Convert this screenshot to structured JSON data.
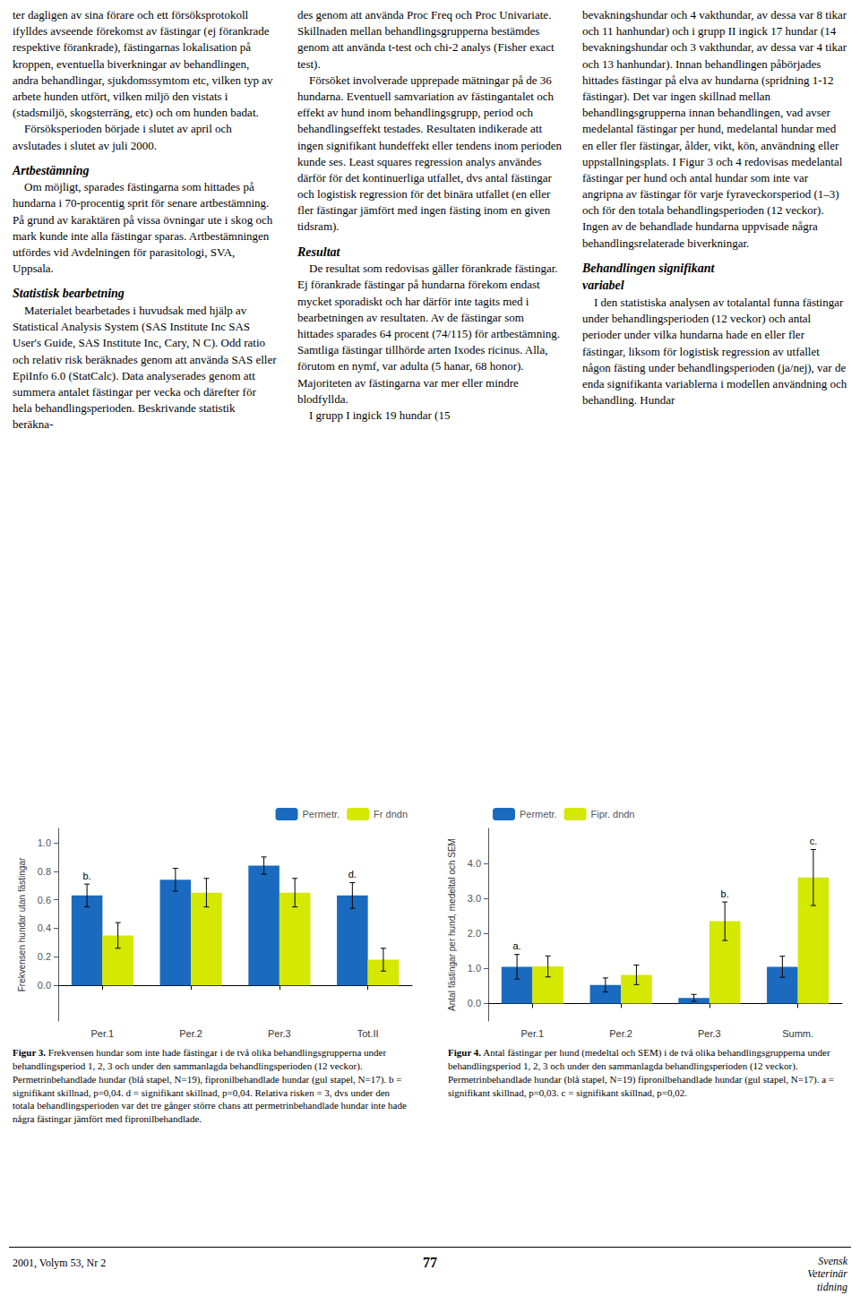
{
  "text_columns": [
    "ter dagligen av sina förare och ett försöksprotokoll ifylldes avseende förekomst av fästingar (ej förankrade respektive förankrade), fästingarnas lokalisation på kroppen, eventuella biverkningar av behandlingen, andra behandlingar, sjukdomssymtom etc, vilken typ av arbete hunden utfört, vilken miljö den vistats i (stadsmiljö, skogsterräng, etc) och om hunden badat.\n    Försöksperioden började i slutet av april och avslutades i slutet av juli 2000.\n\nArtbestämning\n    Om möjligt, sparades fästingarna som hittades på hundarna i 70-procentig sprit för senare artbestämning. På grund av karaktären på vissa övningar ute i skog och mark kunde inte alla fästingar sparas. Artbestämningen utfördes vid Avdelningen för parasitologi, SVA, Uppsala.\n\nStatistisk bearbetning\n    Materialet bearbetades i huvudsak med hjälp av Statistical Analysis System (SAS Institute Inc SAS User's Guide, SAS Institute Inc, Cary, N C). Odd ratio och relativ risk beräknades genom att använda SAS eller EpiInfo 6.0 (StatCalc). Data analyserades genom att summera antalet fästingar per vecka och därefter för hela behandlingsperioden. Beskrivande statistik beräkna-",
    "des genom att använda Proc Freq och Proc Univariate. Skillnaden mellan behandlingsgrupperna bestämdes genom att använda t-test och chi-2 analys (Fisher exact test).\n    Försöket involverade upprepade mätningar på de 36 hundarna. Eventuell samvariation av fästingantalet och effekt av hund inom behandlingsgrupp, period och behandlingseffekt testades. Resultaten indikerade att ingen signifikant hundeffekt eller tendens inom perioden kunde ses. Least squares regression analys användes därför för det kontinuerliga utfallet, dvs antal fästingar och logistisk regression för det binära utfallet (en eller fler fästingar jämfört med ingen fästing inom en given tidsram).\n\nResultat\n    De resultat som redovisas gäller förankrade fästingar. Ej förankrade fästingar på hundarna förekom endast mycket sporadiskt och har därför inte tagits med i bearbetningen av resultaten. Av de fästingar som hittades sparades 64 procent (74/115) för artbestämning. Samtliga fästingar tillhörde arten Ixodes ricinus. Alla, förutom en nymf, var adulta (5 hanar, 68 honor). Majoriteten av fästingarna var mer eller mindre blodfyllda.\n    I grupp I ingick 19 hundar (15",
    "bevakningshundar och 4 vakthundar, av dessa var 8 tikar och 11 hanhundar) och i grupp II ingick 17 hundar (14 bevakningshundar och 3 vakthundar, av dessa var 4 tikar och 13 hanhundar). Innan behandlingen påbörjades hittades fästingar på elva av hundarna (spridning 1-12 fästingar). Det var ingen skillnad mellan behandlingsgrupperna innan behandlingen, vad avser medelantal fästingar per hund, medelantal hundar med en eller fler fästingar, ålder, vikt, kön, användning eller uppstallningsplats. I Figur 3 och 4 redovisas medelantal fästingar per hund och antal hundar som inte var angripna av fästingar för varje fyraveckorsperiod (1–3) och för den totala behandlingsperioden (12 veckor). Ingen av de behandlade hundarna uppvisade några behandlingsrelaterade biverkningar.\n\nBehandlingen signifikant\nvariabel\n    I den statistiska analysen av totalantal funna fästingar under behandlingsperioden (12 veckor) och antal perioder under vilka hundarna hade en eller fler fästingar, liksom för logistisk regression av utfallet någon fästing under behandlingsperioden (ja/nej), var de enda signifikanta variablerna i modellen användning och behandling. Hundar"
  ],
  "chart_data": [
    {
      "type": "bar",
      "title": "Figur 3.",
      "caption": "Frekvensen hundar som inte hade fästingar i de två olika behandlingsgrupperna under behandlingsperiod 1, 2, 3 och under den sammanlagda behandlingsperioden (12 veckor). Permetrinbehandlade hundar (blå stapel, N=19), fipronilbehandlade hundar (gul stapel, N=17). b = signifikant skillnad, p=0,04. d = signifikant skillnad, p=0,04. Relativa risken = 3, dvs under den totala behandlingsperioden var det tre gånger större chans att permetrinbehandlade hundar inte hade några fästingar jämfört med fipronilbehandlade.",
      "ylabel": "Frekvensen hundar utan fästingar",
      "categories": [
        "Per.1",
        "Per.2",
        "Per.3",
        "Tot.II"
      ],
      "series": [
        {
          "name": "Permetr.",
          "color": "#1a6abf",
          "values": [
            0.63,
            0.74,
            0.84,
            0.63
          ],
          "errors": [
            0.08,
            0.08,
            0.06,
            0.09
          ],
          "annotations": [
            "b.",
            null,
            null,
            "d."
          ]
        },
        {
          "name": "Fr dndn",
          "color": "#d4e800",
          "values": [
            0.35,
            0.65,
            0.65,
            0.18
          ],
          "errors": [
            0.09,
            0.1,
            0.1,
            0.08
          ],
          "annotations": [
            null,
            null,
            null,
            null
          ]
        }
      ],
      "ylim": [
        -0.25,
        1.1
      ],
      "yticks": [
        {
          "value": 0,
          "label": "0.0"
        },
        0.2,
        0.4,
        0.6,
        0.8,
        {
          "value": 1,
          "label": "1.0"
        }
      ],
      "legend": "upper right",
      "grid": false
    },
    {
      "type": "bar",
      "title": "Figur 4.",
      "caption": "Antal fästingar per hund (medeltal och SEM) i de två olika behandlingsgrupperna under behandlingsperiod 1, 2, 3 och under den sammanlagda behandlingsperioden (12 veckor). Permetrinbehandlade hundar (blå stapel, N=19) fipronilbehandlade hundar (gul stapel, N=17). a = signifikant skillnad, p=0,03. c = signifikant skillnad, p=0,02.",
      "ylabel": "Antal fästingar per hund, medeltal och SEM",
      "categories": [
        "Per.1",
        "Per.2",
        "Per.3",
        "Summ."
      ],
      "series": [
        {
          "name": "Permetr.",
          "color": "#1a6abf",
          "values": [
            1.05,
            0.53,
            0.16,
            1.05
          ],
          "errors": [
            0.35,
            0.2,
            0.1,
            0.3
          ],
          "annotations": [
            "a.",
            null,
            null,
            null
          ]
        },
        {
          "name": "Fipr. dndn",
          "color": "#d4e800",
          "values": [
            1.06,
            0.82,
            2.35,
            3.6
          ],
          "errors": [
            0.3,
            0.28,
            0.55,
            0.8
          ],
          "annotations": [
            null,
            null,
            "b.",
            "c."
          ]
        }
      ],
      "ylim": [
        -0.5,
        5.0
      ],
      "yticks": [
        {
          "value": 0,
          "label": "0.0"
        },
        {
          "value": 1,
          "label": "1.0"
        },
        {
          "value": 2,
          "label": "2.0"
        },
        {
          "value": 3,
          "label": "3.0"
        },
        {
          "value": 4,
          "label": "4.0"
        }
      ],
      "legend": "upper left",
      "grid": false
    }
  ],
  "footer": {
    "left": "2001, Volym 53, Nr 2",
    "center": "77",
    "right": "Svensk\nVeterinär\ntidning"
  }
}
